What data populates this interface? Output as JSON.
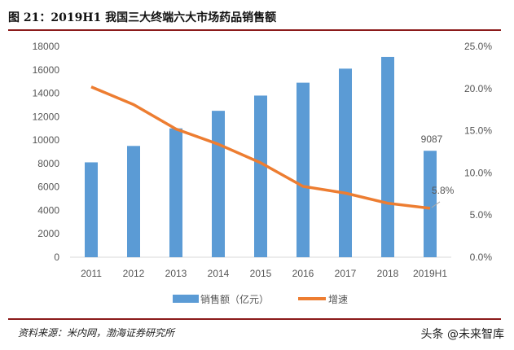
{
  "title": "图 21：2019H1 我国三大终端六大市场药品销售额",
  "source": "资料来源：米内网，渤海证券研究所",
  "watermark": "头条 @未来智库",
  "chart_data": {
    "type": "bar+line",
    "categories": [
      "2011",
      "2012",
      "2013",
      "2014",
      "2015",
      "2016",
      "2017",
      "2018",
      "2019H1"
    ],
    "series": [
      {
        "name": "销售额（亿元）",
        "type": "bar",
        "axis": "left",
        "color": "#5b9bd5",
        "values": [
          8100,
          9500,
          11000,
          12500,
          13800,
          14900,
          16100,
          17100,
          9087
        ]
      },
      {
        "name": "增速",
        "type": "line",
        "axis": "right",
        "color": "#ed7d31",
        "values": [
          20.2,
          18.1,
          15.2,
          13.4,
          11.2,
          8.4,
          7.6,
          6.4,
          5.8
        ]
      }
    ],
    "data_labels": [
      {
        "series": "销售额（亿元）",
        "category": "2019H1",
        "text": "9087"
      },
      {
        "series": "增速",
        "category": "2019H1",
        "text": "5.8%"
      }
    ],
    "left_axis": {
      "ylim": [
        0,
        18000
      ],
      "ticks": [
        "0",
        "2000",
        "4000",
        "6000",
        "8000",
        "10000",
        "12000",
        "14000",
        "16000",
        "18000"
      ]
    },
    "right_axis": {
      "ylim": [
        0,
        25
      ],
      "ticks": [
        "0.0%",
        "5.0%",
        "10.0%",
        "15.0%",
        "20.0%",
        "25.0%"
      ]
    },
    "grid": false,
    "legend": "bottom"
  }
}
